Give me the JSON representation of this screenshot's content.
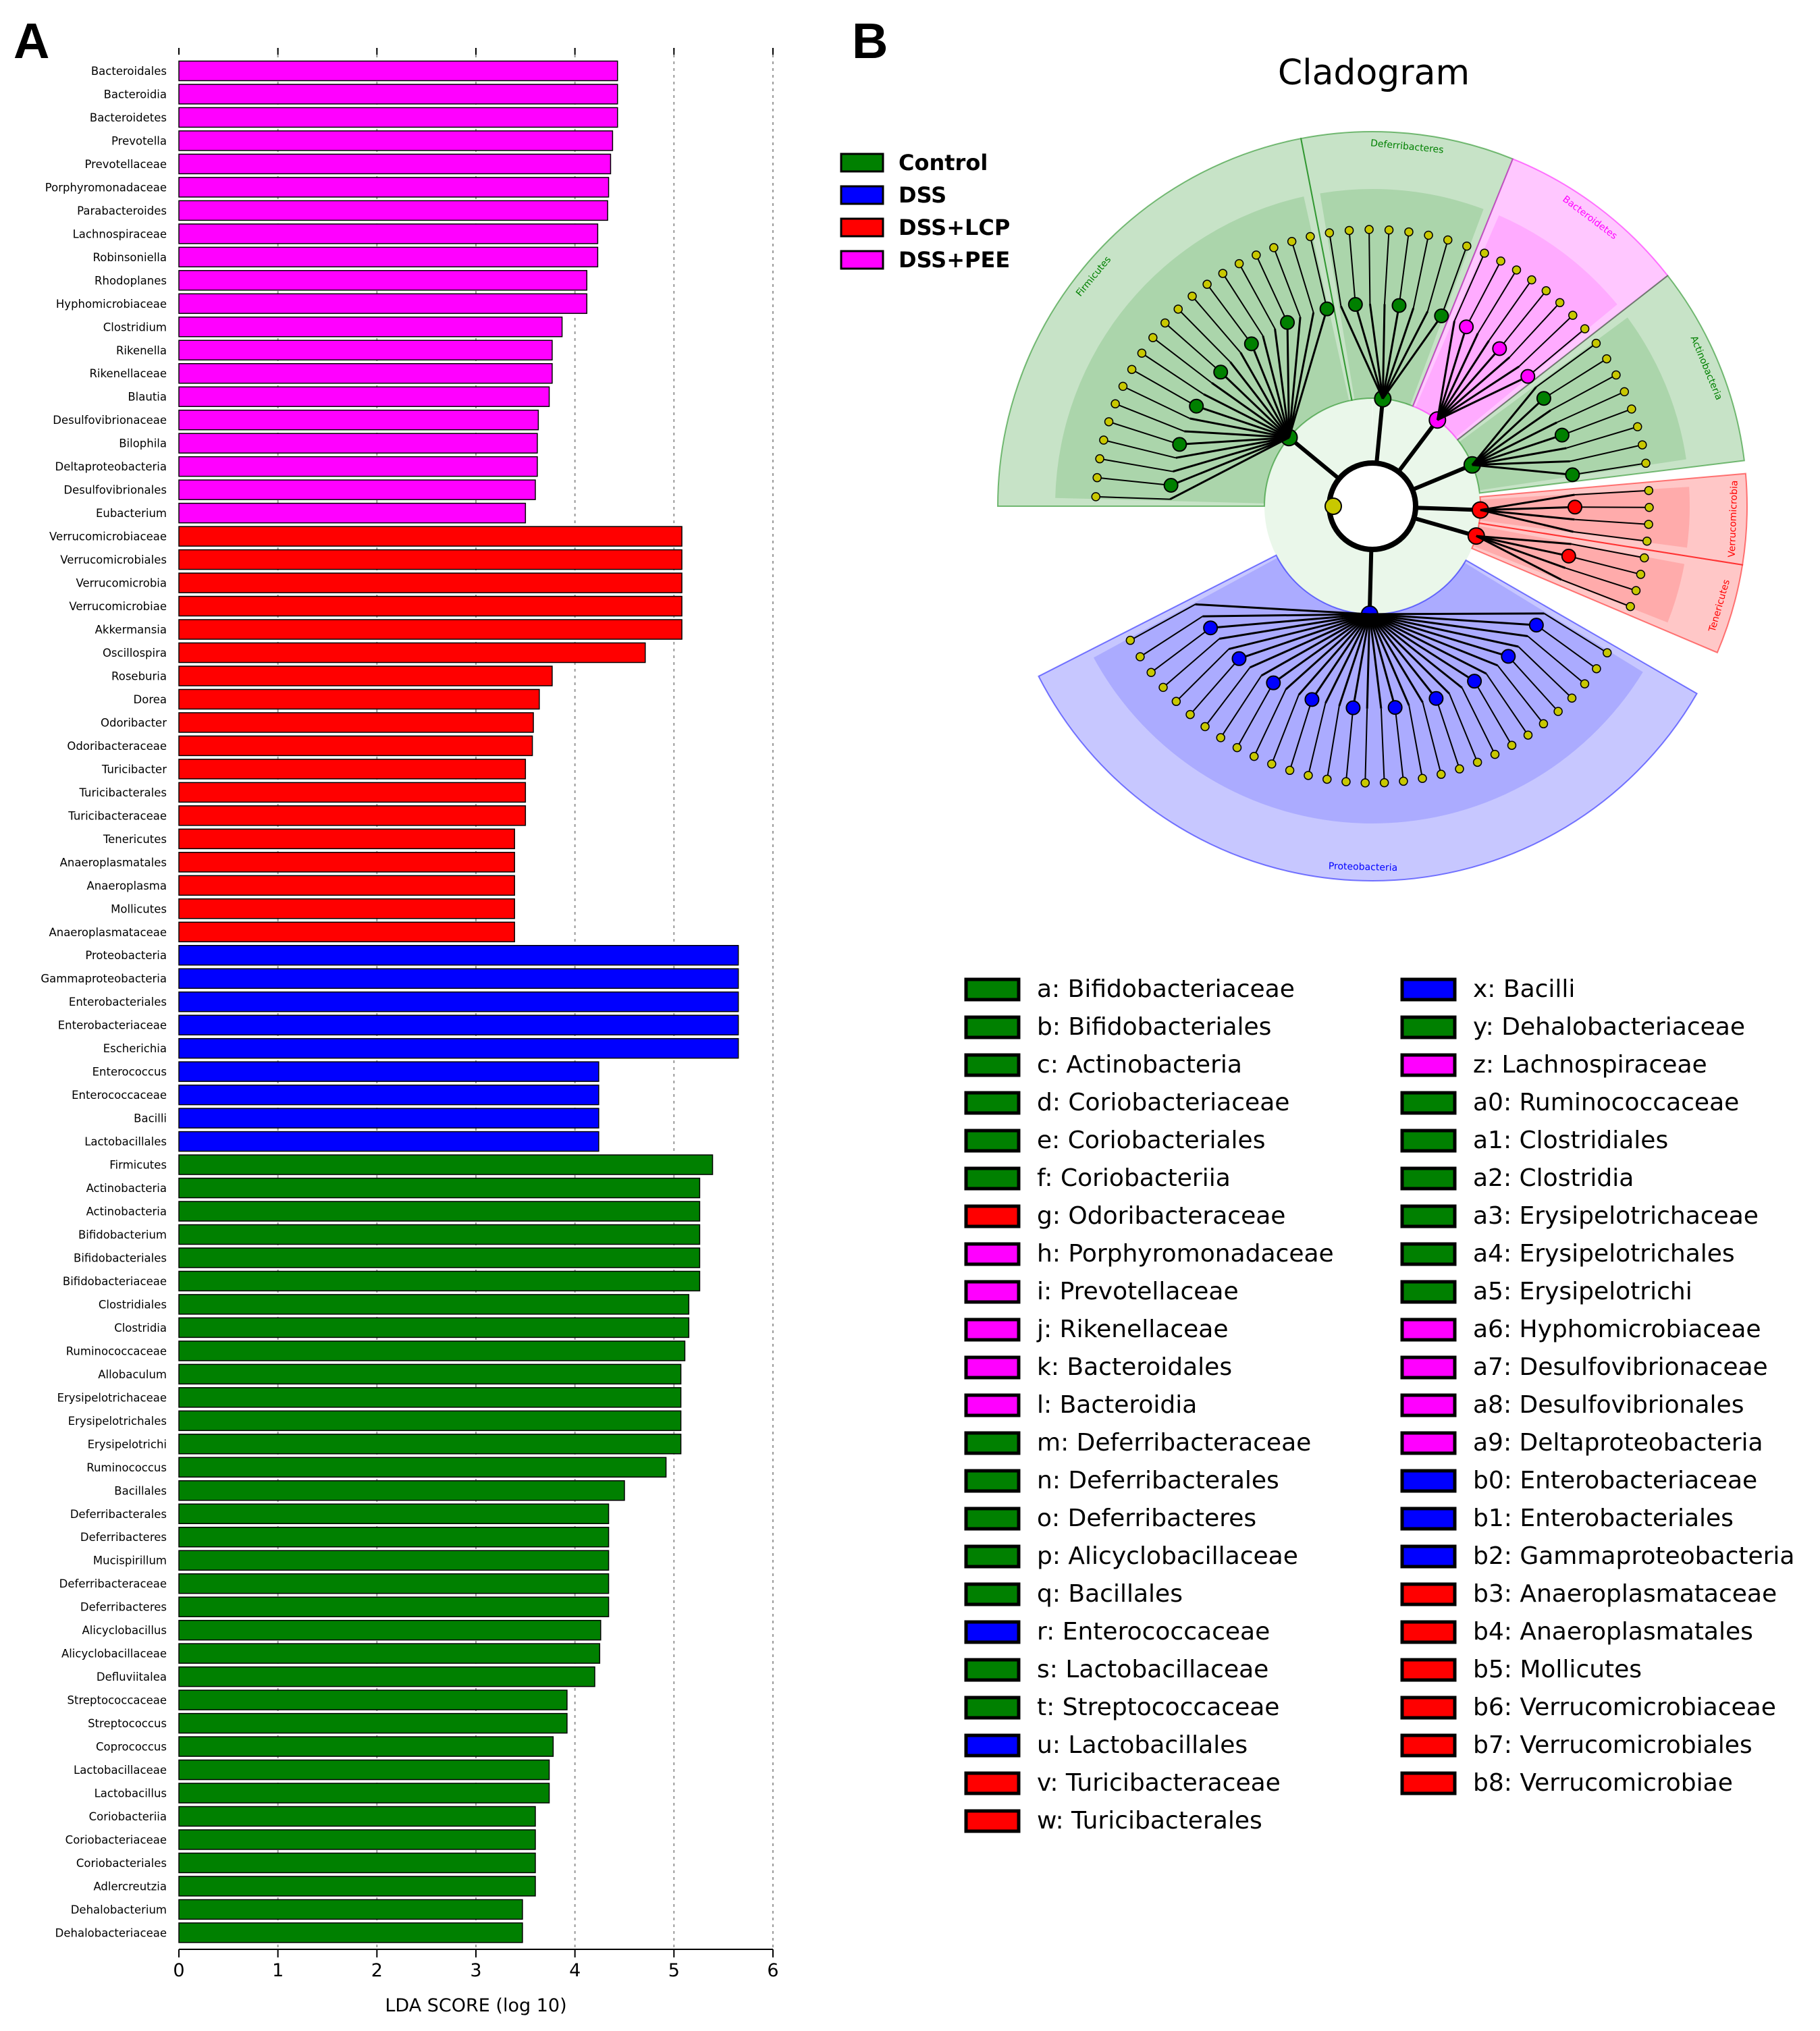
{
  "panels": {
    "a": "A",
    "b": "B"
  },
  "colors": {
    "Control": "#008000",
    "DSS": "#0000ff",
    "DSS+LCP": "#ff0000",
    "DSS+PEE": "#ff00ff",
    "node": "#c8c800"
  },
  "chart_data": [
    {
      "type": "bar",
      "orientation": "horizontal",
      "xlabel": "LDA SCORE (log 10)",
      "xlim": [
        0,
        6
      ],
      "xticks": [
        "0",
        "1",
        "2",
        "3",
        "4",
        "5",
        "6"
      ],
      "grid": "dotted vertical",
      "categories": [
        "Bacteroidales",
        "Bacteroidia",
        "Bacteroidetes",
        "Prevotella",
        "Prevotellaceae",
        "Porphyromonadaceae",
        "Parabacteroides",
        "Lachnospiraceae",
        "Robinsoniella",
        "Rhodoplanes",
        "Hyphomicrobiaceae",
        "Clostridium",
        "Rikenella",
        "Rikenellaceae",
        "Blautia",
        "Desulfovibrionaceae",
        "Bilophila",
        "Deltaproteobacteria",
        "Desulfovibrionales",
        "Eubacterium",
        "Verrucomicrobiaceae",
        "Verrucomicrobiales",
        "Verrucomicrobia",
        "Verrucomicrobiae",
        "Akkermansia",
        "Oscillospira",
        "Roseburia",
        "Dorea",
        "Odoribacter",
        "Odoribacteraceae",
        "Turicibacter",
        "Turicibacterales",
        "Turicibacteraceae",
        "Tenericutes",
        "Anaeroplasmatales",
        "Anaeroplasma",
        "Mollicutes",
        "Anaeroplasmataceae",
        "Proteobacteria",
        "Gammaproteobacteria",
        "Enterobacteriales",
        "Enterobacteriaceae",
        "Escherichia",
        "Enterococcus",
        "Enterococcaceae",
        "Bacilli",
        "Lactobacillales",
        "Firmicutes",
        "Actinobacteria",
        "Actinobacteria",
        "Bifidobacterium",
        "Bifidobacteriales",
        "Bifidobacteriaceae",
        "Clostridiales",
        "Clostridia",
        "Ruminococcaceae",
        "Allobaculum",
        "Erysipelotrichaceae",
        "Erysipelotrichales",
        "Erysipelotrichi",
        "Ruminococcus",
        "Bacillales",
        "Deferribacterales",
        "Deferribacteres",
        "Mucispirillum",
        "Deferribacteraceae",
        "Deferribacteres",
        "Alicyclobacillus",
        "Alicyclobacillaceae",
        "Defluviitalea",
        "Streptococcaceae",
        "Streptococcus",
        "Coprococcus",
        "Lactobacillaceae",
        "Lactobacillus",
        "Coriobacteriia",
        "Coriobacteriaceae",
        "Coriobacteriales",
        "Adlercreutzia",
        "Dehalobacterium",
        "Dehalobacteriaceae"
      ],
      "values": [
        4.43,
        4.43,
        4.43,
        4.38,
        4.36,
        4.34,
        4.33,
        4.23,
        4.23,
        4.12,
        4.12,
        3.87,
        3.77,
        3.77,
        3.74,
        3.63,
        3.62,
        3.62,
        3.6,
        3.5,
        5.08,
        5.08,
        5.08,
        5.08,
        5.08,
        4.71,
        3.77,
        3.64,
        3.58,
        3.57,
        3.5,
        3.5,
        3.5,
        3.39,
        3.39,
        3.39,
        3.39,
        3.39,
        5.65,
        5.65,
        5.65,
        5.65,
        5.65,
        4.24,
        4.24,
        4.24,
        4.24,
        5.39,
        5.26,
        5.26,
        5.26,
        5.26,
        5.26,
        5.15,
        5.15,
        5.11,
        5.07,
        5.07,
        5.07,
        5.07,
        4.92,
        4.5,
        4.34,
        4.34,
        4.34,
        4.34,
        4.34,
        4.26,
        4.25,
        4.2,
        3.92,
        3.92,
        3.78,
        3.74,
        3.74,
        3.6,
        3.6,
        3.6,
        3.6,
        3.47,
        3.47
      ],
      "groups": [
        "DSS+PEE",
        "DSS+PEE",
        "DSS+PEE",
        "DSS+PEE",
        "DSS+PEE",
        "DSS+PEE",
        "DSS+PEE",
        "DSS+PEE",
        "DSS+PEE",
        "DSS+PEE",
        "DSS+PEE",
        "DSS+PEE",
        "DSS+PEE",
        "DSS+PEE",
        "DSS+PEE",
        "DSS+PEE",
        "DSS+PEE",
        "DSS+PEE",
        "DSS+PEE",
        "DSS+PEE",
        "DSS+LCP",
        "DSS+LCP",
        "DSS+LCP",
        "DSS+LCP",
        "DSS+LCP",
        "DSS+LCP",
        "DSS+LCP",
        "DSS+LCP",
        "DSS+LCP",
        "DSS+LCP",
        "DSS+LCP",
        "DSS+LCP",
        "DSS+LCP",
        "DSS+LCP",
        "DSS+LCP",
        "DSS+LCP",
        "DSS+LCP",
        "DSS+LCP",
        "DSS",
        "DSS",
        "DSS",
        "DSS",
        "DSS",
        "DSS",
        "DSS",
        "DSS",
        "DSS",
        "Control",
        "Control",
        "Control",
        "Control",
        "Control",
        "Control",
        "Control",
        "Control",
        "Control",
        "Control",
        "Control",
        "Control",
        "Control",
        "Control",
        "Control",
        "Control",
        "Control",
        "Control",
        "Control",
        "Control",
        "Control",
        "Control",
        "Control",
        "Control",
        "Control",
        "Control",
        "Control",
        "Control",
        "Control",
        "Control",
        "Control",
        "Control",
        "Control",
        "Control"
      ]
    },
    {
      "type": "cladogram",
      "title": "Cladogram",
      "legend": [
        "Control",
        "DSS",
        "DSS+LCP",
        "DSS+PEE"
      ],
      "clades": [
        {
          "label": "Firmicutes",
          "group": "Control",
          "start": -90,
          "end": -11
        },
        {
          "label": "Deferribacteres",
          "group": "Control",
          "start": -11,
          "end": 22
        },
        {
          "label": "Bacteroidetes",
          "group": "DSS+PEE",
          "start": 22,
          "end": 52
        },
        {
          "label": "Actinobacteria",
          "group": "Control",
          "start": 52,
          "end": 83
        },
        {
          "label": "Verrucomicrobia",
          "group": "DSS+LCP",
          "start": 85,
          "end": 99
        },
        {
          "label": "Tenericutes",
          "group": "DSS+LCP",
          "start": 99,
          "end": 113
        },
        {
          "label": "Proteobacteria",
          "group": "DSS",
          "start": 120,
          "end": 243
        }
      ],
      "key": [
        {
          "code": "a",
          "name": "Bifidobacteriaceae",
          "group": "Control"
        },
        {
          "code": "b",
          "name": "Bifidobacteriales",
          "group": "Control"
        },
        {
          "code": "c",
          "name": "Actinobacteria",
          "group": "Control"
        },
        {
          "code": "d",
          "name": "Coriobacteriaceae",
          "group": "Control"
        },
        {
          "code": "e",
          "name": "Coriobacteriales",
          "group": "Control"
        },
        {
          "code": "f",
          "name": "Coriobacteriia",
          "group": "Control"
        },
        {
          "code": "g",
          "name": "Odoribacteraceae",
          "group": "DSS+LCP"
        },
        {
          "code": "h",
          "name": "Porphyromonadaceae",
          "group": "DSS+PEE"
        },
        {
          "code": "i",
          "name": "Prevotellaceae",
          "group": "DSS+PEE"
        },
        {
          "code": "j",
          "name": "Rikenellaceae",
          "group": "DSS+PEE"
        },
        {
          "code": "k",
          "name": "Bacteroidales",
          "group": "DSS+PEE"
        },
        {
          "code": "l",
          "name": "Bacteroidia",
          "group": "DSS+PEE"
        },
        {
          "code": "m",
          "name": "Deferribacteraceae",
          "group": "Control"
        },
        {
          "code": "n",
          "name": "Deferribacterales",
          "group": "Control"
        },
        {
          "code": "o",
          "name": "Deferribacteres",
          "group": "Control"
        },
        {
          "code": "p",
          "name": "Alicyclobacillaceae",
          "group": "Control"
        },
        {
          "code": "q",
          "name": "Bacillales",
          "group": "Control"
        },
        {
          "code": "r",
          "name": "Enterococcaceae",
          "group": "DSS"
        },
        {
          "code": "s",
          "name": "Lactobacillaceae",
          "group": "Control"
        },
        {
          "code": "t",
          "name": "Streptococcaceae",
          "group": "Control"
        },
        {
          "code": "u",
          "name": "Lactobacillales",
          "group": "DSS"
        },
        {
          "code": "v",
          "name": "Turicibacteraceae",
          "group": "DSS+LCP"
        },
        {
          "code": "w",
          "name": "Turicibacterales",
          "group": "DSS+LCP"
        },
        {
          "code": "x",
          "name": "Bacilli",
          "group": "DSS"
        },
        {
          "code": "y",
          "name": "Dehalobacteriaceae",
          "group": "Control"
        },
        {
          "code": "z",
          "name": "Lachnospiraceae",
          "group": "DSS+PEE"
        },
        {
          "code": "a0",
          "name": "Ruminococcaceae",
          "group": "Control"
        },
        {
          "code": "a1",
          "name": "Clostridiales",
          "group": "Control"
        },
        {
          "code": "a2",
          "name": "Clostridia",
          "group": "Control"
        },
        {
          "code": "a3",
          "name": "Erysipelotrichaceae",
          "group": "Control"
        },
        {
          "code": "a4",
          "name": "Erysipelotrichales",
          "group": "Control"
        },
        {
          "code": "a5",
          "name": "Erysipelotrichi",
          "group": "Control"
        },
        {
          "code": "a6",
          "name": "Hyphomicrobiaceae",
          "group": "DSS+PEE"
        },
        {
          "code": "a7",
          "name": "Desulfovibrionaceae",
          "group": "DSS+PEE"
        },
        {
          "code": "a8",
          "name": "Desulfovibrionales",
          "group": "DSS+PEE"
        },
        {
          "code": "a9",
          "name": "Deltaproteobacteria",
          "group": "DSS+PEE"
        },
        {
          "code": "b0",
          "name": "Enterobacteriaceae",
          "group": "DSS"
        },
        {
          "code": "b1",
          "name": "Enterobacteriales",
          "group": "DSS"
        },
        {
          "code": "b2",
          "name": "Gammaproteobacteria",
          "group": "DSS"
        },
        {
          "code": "b3",
          "name": "Anaeroplasmataceae",
          "group": "DSS+LCP"
        },
        {
          "code": "b4",
          "name": "Anaeroplasmatales",
          "group": "DSS+LCP"
        },
        {
          "code": "b5",
          "name": "Mollicutes",
          "group": "DSS+LCP"
        },
        {
          "code": "b6",
          "name": "Verrucomicrobiaceae",
          "group": "DSS+LCP"
        },
        {
          "code": "b7",
          "name": "Verrucomicrobiales",
          "group": "DSS+LCP"
        },
        {
          "code": "b8",
          "name": "Verrucomicrobiae",
          "group": "DSS+LCP"
        }
      ]
    }
  ]
}
